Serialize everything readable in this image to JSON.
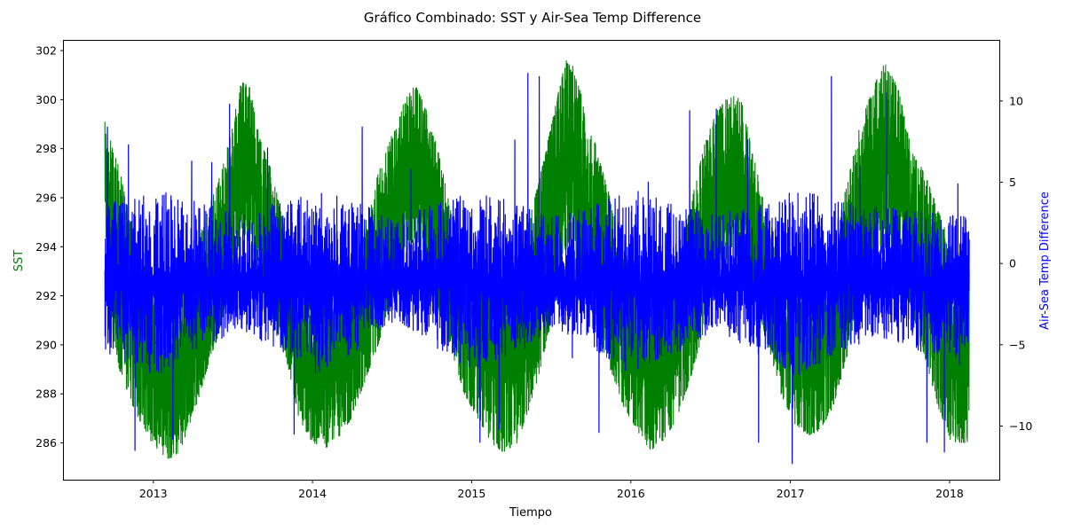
{
  "chart_data": {
    "type": "line",
    "title": "Gráfico Combinado: SST y Air-Sea Temp Difference",
    "xlabel": "Tiempo",
    "ylabel_left": "SST",
    "ylabel_right": "Air-Sea Temp Difference",
    "xlim": [
      "2012-06-10",
      "2018-04-25"
    ],
    "ylim_left": [
      284.5,
      302.4
    ],
    "ylim_right": [
      -13.3,
      13.7
    ],
    "x_ticks": [
      "2013",
      "2014",
      "2015",
      "2016",
      "2017",
      "2018"
    ],
    "y_ticks_left": [
      286,
      288,
      290,
      292,
      294,
      296,
      298,
      300,
      302
    ],
    "y_ticks_right": [
      -10,
      -5,
      0,
      5,
      10
    ],
    "colors": {
      "sst": "#008000",
      "diff": "#0000ff",
      "left_axis_label": "#008000",
      "right_axis_label": "#0000ff"
    },
    "series": [
      {
        "name": "SST",
        "axis": "left",
        "color": "#008000",
        "x_range": [
          "2012-09-12",
          "2018-02-15"
        ],
        "envelope": {
          "dates": [
            "2012-09-12",
            "2012-09-20",
            "2012-10-15",
            "2012-11-15",
            "2012-12-20",
            "2013-02-01",
            "2013-03-01",
            "2013-04-01",
            "2013-05-01",
            "2013-06-01",
            "2013-07-01",
            "2013-07-20",
            "2013-08-10",
            "2013-09-01",
            "2013-10-01",
            "2013-11-01",
            "2013-12-01",
            "2014-01-01",
            "2014-02-01",
            "2014-03-01",
            "2014-04-01",
            "2014-05-01",
            "2014-06-01",
            "2014-07-01",
            "2014-08-01",
            "2014-08-25",
            "2014-09-15",
            "2014-10-15",
            "2014-11-15",
            "2014-12-15",
            "2015-01-15",
            "2015-02-15",
            "2015-03-15",
            "2015-04-15",
            "2015-05-15",
            "2015-06-15",
            "2015-07-15",
            "2015-08-05",
            "2015-08-25",
            "2015-09-15",
            "2015-10-15",
            "2015-11-15",
            "2015-12-15",
            "2016-01-15",
            "2016-02-15",
            "2016-03-15",
            "2016-04-15",
            "2016-05-15",
            "2016-06-15",
            "2016-07-15",
            "2016-08-15",
            "2016-09-10",
            "2016-10-10",
            "2016-11-10",
            "2016-12-10",
            "2017-01-10",
            "2017-02-10",
            "2017-03-10",
            "2017-04-10",
            "2017-05-10",
            "2017-06-10",
            "2017-07-10",
            "2017-08-05",
            "2017-09-05",
            "2017-10-05",
            "2017-11-05",
            "2017-12-05",
            "2018-01-05",
            "2018-02-15"
          ],
          "upper": [
            299.1,
            298.6,
            297.2,
            294.5,
            292.8,
            292.2,
            292.5,
            293.5,
            295.2,
            296.8,
            298.8,
            300.8,
            300.5,
            298.5,
            297.0,
            294.5,
            292.5,
            292.0,
            292.2,
            292.6,
            293.5,
            295.0,
            297.0,
            298.5,
            300.0,
            300.6,
            299.8,
            298.0,
            295.5,
            293.5,
            292.5,
            292.3,
            292.6,
            293.6,
            295.2,
            297.5,
            300.0,
            301.6,
            301.3,
            299.8,
            298.0,
            296.0,
            293.5,
            292.5,
            292.3,
            292.6,
            293.5,
            295.5,
            298.0,
            299.5,
            300.2,
            300.0,
            297.6,
            295.0,
            293.5,
            292.5,
            292.5,
            292.8,
            294.5,
            296.5,
            299.0,
            300.5,
            301.5,
            300.5,
            298.0,
            297.0,
            295.5,
            294.0,
            293.0
          ],
          "lower": [
            295.5,
            291.5,
            289.0,
            287.5,
            286.2,
            285.3,
            285.6,
            287.0,
            288.8,
            290.5,
            292.5,
            294.5,
            294.2,
            292.5,
            291.0,
            289.5,
            287.0,
            286.0,
            285.8,
            286.2,
            287.0,
            288.5,
            290.0,
            292.0,
            293.5,
            294.3,
            293.5,
            291.5,
            289.8,
            288.0,
            287.0,
            286.0,
            285.6,
            286.0,
            287.5,
            289.5,
            292.0,
            294.0,
            293.5,
            292.2,
            290.5,
            289.0,
            287.5,
            286.5,
            285.7,
            286.0,
            287.0,
            288.5,
            290.5,
            292.5,
            293.5,
            293.5,
            292.0,
            290.0,
            288.0,
            286.8,
            286.3,
            286.5,
            287.5,
            289.5,
            291.5,
            293.0,
            294.0,
            293.5,
            291.5,
            289.5,
            287.5,
            286.0,
            286.0
          ]
        }
      },
      {
        "name": "Air-Sea Temp Difference",
        "axis": "right",
        "color": "#0000ff",
        "x_range": [
          "2012-09-12",
          "2018-02-15"
        ],
        "baseline": -1.2,
        "envelope": {
          "dates": [
            "2012-09-12",
            "2013-01-15",
            "2013-07-15",
            "2014-01-15",
            "2014-07-15",
            "2015-01-15",
            "2015-07-15",
            "2016-01-15",
            "2016-07-15",
            "2017-01-15",
            "2017-07-15",
            "2018-02-15"
          ],
          "upper": [
            4.0,
            4.5,
            3.0,
            4.5,
            3.0,
            4.5,
            3.0,
            4.5,
            3.0,
            4.5,
            3.5,
            3.0
          ],
          "lower": [
            -5.5,
            -7.0,
            -4.0,
            -7.0,
            -3.5,
            -7.0,
            -4.0,
            -7.0,
            -4.0,
            -7.0,
            -4.5,
            -6.5
          ]
        },
        "spikes": [
          {
            "date": "2012-09-18",
            "value": 8.4
          },
          {
            "date": "2012-11-05",
            "value": 7.3
          },
          {
            "date": "2012-11-20",
            "value": -11.5
          },
          {
            "date": "2013-02-15",
            "value": -10.8
          },
          {
            "date": "2013-03-30",
            "value": 6.3
          },
          {
            "date": "2013-05-15",
            "value": 6.2
          },
          {
            "date": "2013-06-25",
            "value": 9.8
          },
          {
            "date": "2013-09-20",
            "value": 7.1
          },
          {
            "date": "2013-11-20",
            "value": -10.5
          },
          {
            "date": "2014-04-25",
            "value": 8.4
          },
          {
            "date": "2014-08-15",
            "value": 5.8
          },
          {
            "date": "2015-01-20",
            "value": -11.0
          },
          {
            "date": "2015-03-05",
            "value": -10.2
          },
          {
            "date": "2015-04-10",
            "value": 7.6
          },
          {
            "date": "2015-05-10",
            "value": 11.7
          },
          {
            "date": "2015-06-05",
            "value": 11.5
          },
          {
            "date": "2015-08-20",
            "value": -5.8
          },
          {
            "date": "2015-10-20",
            "value": -10.4
          },
          {
            "date": "2016-02-10",
            "value": 5.0
          },
          {
            "date": "2016-05-15",
            "value": 9.4
          },
          {
            "date": "2016-07-15",
            "value": 9.5
          },
          {
            "date": "2016-09-25",
            "value": 7.6
          },
          {
            "date": "2016-10-20",
            "value": -11.0
          },
          {
            "date": "2017-01-05",
            "value": -12.3
          },
          {
            "date": "2017-04-05",
            "value": 11.5
          },
          {
            "date": "2017-06-10",
            "value": 6.0
          },
          {
            "date": "2017-08-10",
            "value": 10.5
          },
          {
            "date": "2017-11-10",
            "value": -11.0
          },
          {
            "date": "2017-12-20",
            "value": -11.6
          },
          {
            "date": "2018-01-20",
            "value": 4.9
          }
        ]
      }
    ]
  }
}
